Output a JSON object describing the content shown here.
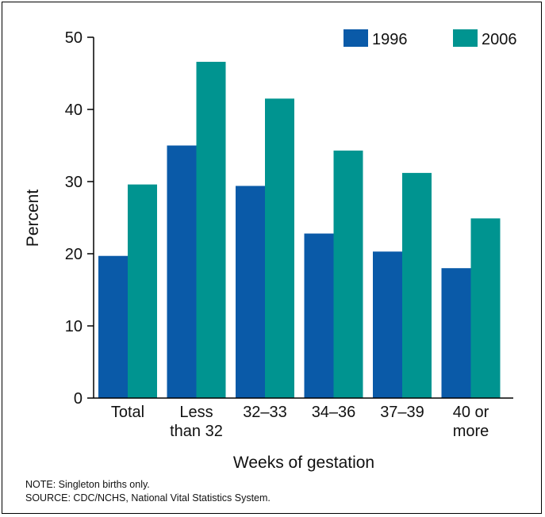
{
  "chart_data": {
    "type": "bar",
    "categories": [
      [
        "Total"
      ],
      [
        "Less",
        "than 32"
      ],
      [
        "32–33"
      ],
      [
        "34–36"
      ],
      [
        "37–39"
      ],
      [
        "40 or",
        "more"
      ]
    ],
    "series": [
      {
        "name": "1996",
        "color": "#0a5aa8",
        "values": [
          19.7,
          35.0,
          29.4,
          22.8,
          20.3,
          18.0
        ]
      },
      {
        "name": "2006",
        "color": "#009490",
        "values": [
          29.6,
          46.6,
          41.5,
          34.3,
          31.2,
          24.9
        ]
      }
    ],
    "xlabel": "Weeks of gestation",
    "ylabel": "Percent",
    "ylim": [
      0,
      50
    ],
    "yticks": [
      0,
      10,
      20,
      30,
      40,
      50
    ],
    "grid": false,
    "legend_position": "top-right"
  },
  "notes": {
    "note": "NOTE: Singleton births only.",
    "source": "SOURCE: CDC/NCHS, National Vital Statistics System."
  }
}
